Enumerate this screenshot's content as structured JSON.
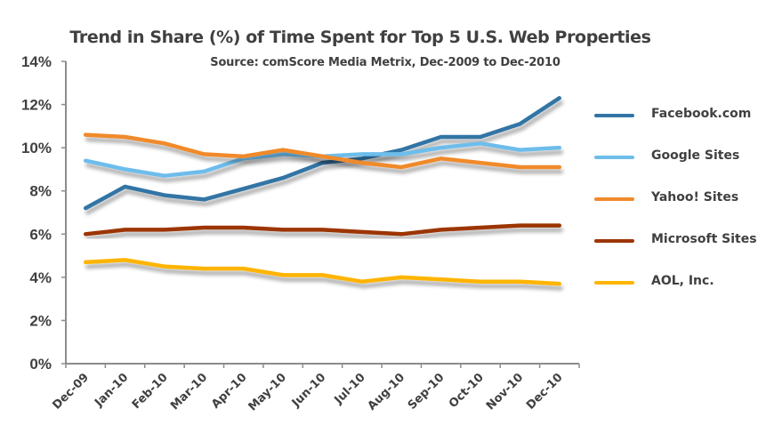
{
  "chart_data": {
    "type": "line",
    "title": "Trend in Share (%) of Time Spent for Top 5 U.S. Web Properties",
    "subtitle": "Source: comScore Media Metrix, Dec-2009 to Dec-2010",
    "xlabel": "",
    "ylabel": "",
    "ylim": [
      0,
      14
    ],
    "yticks": [
      0,
      2,
      4,
      6,
      8,
      10,
      12,
      14
    ],
    "ytick_labels": [
      "0%",
      "2%",
      "4%",
      "6%",
      "8%",
      "10%",
      "12%",
      "14%"
    ],
    "grid": false,
    "legend_position": "right",
    "categories": [
      "Dec-09",
      "Jan-10",
      "Feb-10",
      "Mar-10",
      "Apr-10",
      "May-10",
      "Jun-10",
      "Jul-10",
      "Aug-10",
      "Sep-10",
      "Oct-10",
      "Nov-10",
      "Dec-10"
    ],
    "series": [
      {
        "name": "Facebook.com",
        "color": "#3274A5",
        "values": [
          7.2,
          8.2,
          7.8,
          7.6,
          8.1,
          8.6,
          9.3,
          9.5,
          9.9,
          10.5,
          10.5,
          11.1,
          12.3
        ]
      },
      {
        "name": "Google Sites",
        "color": "#6DBDEB",
        "values": [
          9.4,
          9.0,
          8.7,
          8.9,
          9.5,
          9.7,
          9.6,
          9.7,
          9.7,
          10.0,
          10.2,
          9.9,
          10.0
        ]
      },
      {
        "name": "Yahoo! Sites",
        "color": "#F08A2C",
        "values": [
          10.6,
          10.5,
          10.2,
          9.7,
          9.6,
          9.9,
          9.6,
          9.3,
          9.1,
          9.5,
          9.3,
          9.1,
          9.1
        ]
      },
      {
        "name": "Microsoft Sites",
        "color": "#9C3505",
        "values": [
          6.0,
          6.2,
          6.2,
          6.3,
          6.3,
          6.2,
          6.2,
          6.1,
          6.0,
          6.2,
          6.3,
          6.4,
          6.4
        ]
      },
      {
        "name": "AOL, Inc.",
        "color": "#FFB400",
        "values": [
          4.7,
          4.8,
          4.5,
          4.4,
          4.4,
          4.1,
          4.1,
          3.8,
          4.0,
          3.9,
          3.8,
          3.8,
          3.7
        ]
      }
    ]
  }
}
